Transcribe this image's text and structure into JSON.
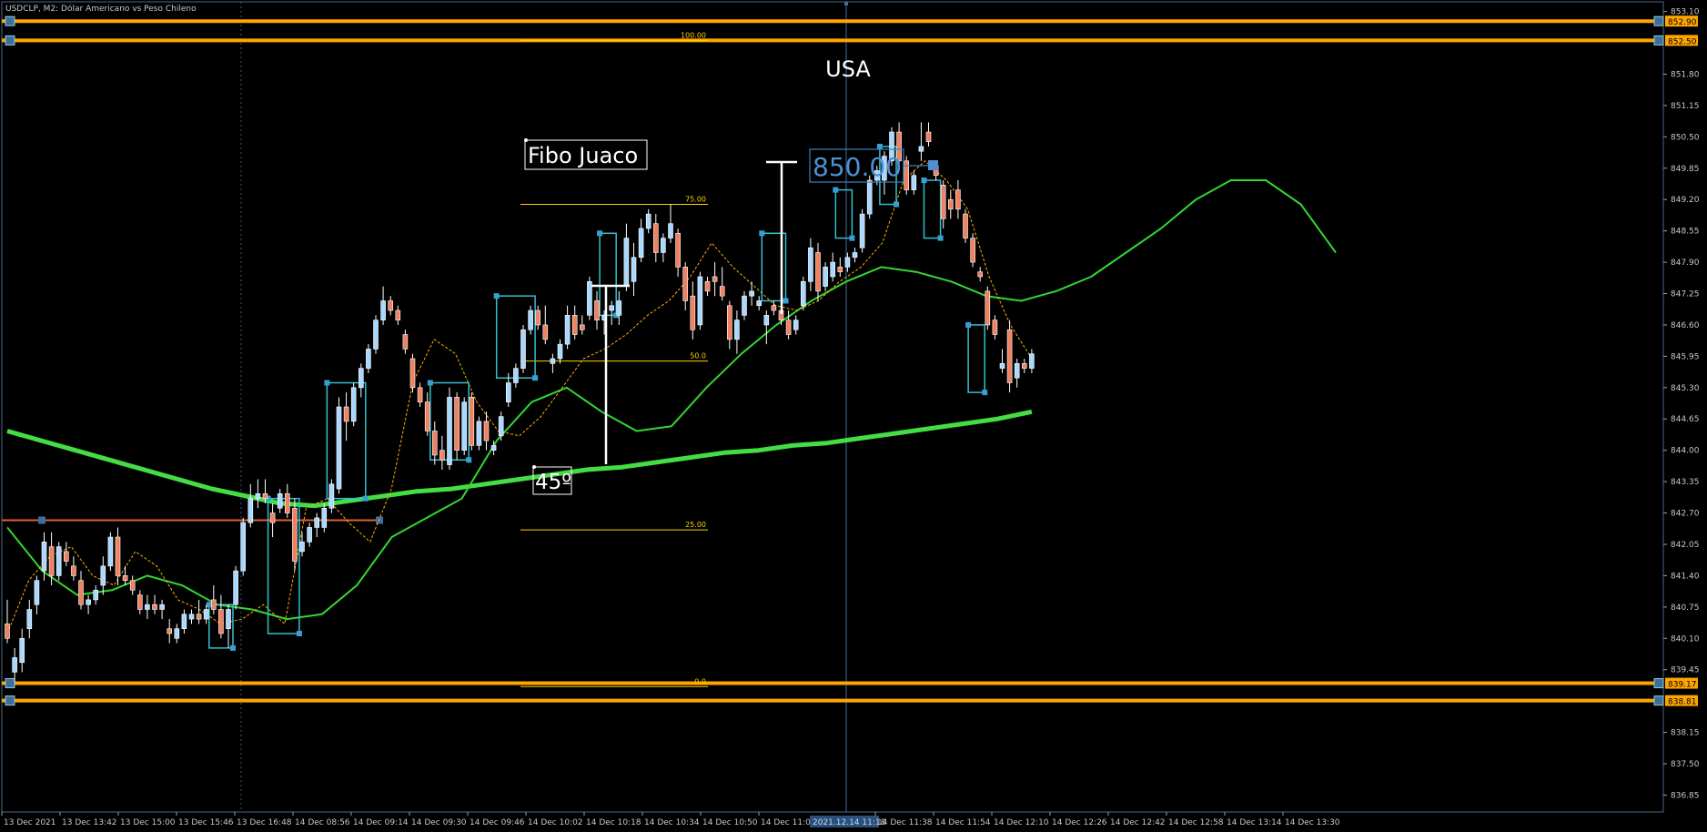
{
  "header": {
    "title": "USDCLP, M2:  Dólar Americano vs Peso Chileno"
  },
  "colors": {
    "background": "#000000",
    "frame": "#4a6a8a",
    "grid_dotted": "#3a5a80",
    "bull": "#a8d8ff",
    "bear": "#f08060",
    "candle_outline": "#ffffff",
    "ma_fast": "#ffb000",
    "ma_mid": "#33d633",
    "ma_slow": "#44dd44",
    "hline": "#ffa500",
    "fib": "#ffd000",
    "box": "#33c0d0",
    "axis_text": "#c8c8c8",
    "price_tag_bg": "#ffa500"
  },
  "chart_data": {
    "type": "candlestick",
    "symbol": "USDCLP",
    "timeframe": "M2",
    "ylim": [
      836.5,
      853.3
    ],
    "y_ticks": [
      836.85,
      837.5,
      838.15,
      839.45,
      840.1,
      840.75,
      841.4,
      842.05,
      842.7,
      843.35,
      844.0,
      844.65,
      845.3,
      845.95,
      846.6,
      847.25,
      847.9,
      848.55,
      849.2,
      849.85,
      850.5,
      851.15,
      851.8,
      853.1
    ],
    "x_labels": [
      "13 Dec 2021",
      "13 Dec 13:42",
      "13 Dec 15:00",
      "13 Dec 15:46",
      "13 Dec 16:48",
      "14 Dec 08:56",
      "14 Dec 09:14",
      "14 Dec 09:30",
      "14 Dec 09:46",
      "14 Dec 10:02",
      "14 Dec 10:18",
      "14 Dec 10:34",
      "14 Dec 10:50",
      "14 Dec 11:06",
      "14 Dec 11:38",
      "14 Dec 11:54",
      "14 Dec 12:10",
      "14 Dec 12:26",
      "14 Dec 12:42",
      "14 Dec 12:58",
      "14 Dec 13:14",
      "14 Dec 13:30"
    ],
    "crosshair_time": "2021.12.14 11:18",
    "candles": [
      {
        "o": 840.4,
        "h": 840.9,
        "l": 840.0,
        "c": 840.1
      },
      {
        "o": 839.4,
        "h": 839.9,
        "l": 839.2,
        "c": 839.7
      },
      {
        "o": 839.6,
        "h": 840.3,
        "l": 839.4,
        "c": 840.1
      },
      {
        "o": 840.3,
        "h": 840.9,
        "l": 840.1,
        "c": 840.7
      },
      {
        "o": 840.8,
        "h": 841.4,
        "l": 840.6,
        "c": 841.3
      },
      {
        "o": 841.5,
        "h": 842.3,
        "l": 841.3,
        "c": 842.1
      },
      {
        "o": 842.0,
        "h": 842.3,
        "l": 841.2,
        "c": 841.4
      },
      {
        "o": 841.4,
        "h": 842.1,
        "l": 841.3,
        "c": 842.0
      },
      {
        "o": 841.9,
        "h": 842.1,
        "l": 841.6,
        "c": 841.7
      },
      {
        "o": 841.6,
        "h": 841.8,
        "l": 841.3,
        "c": 841.4
      },
      {
        "o": 841.3,
        "h": 841.5,
        "l": 840.7,
        "c": 840.8
      },
      {
        "o": 840.8,
        "h": 841.0,
        "l": 840.6,
        "c": 840.9
      },
      {
        "o": 840.9,
        "h": 841.2,
        "l": 840.8,
        "c": 841.1
      },
      {
        "o": 841.2,
        "h": 841.8,
        "l": 841.0,
        "c": 841.6
      },
      {
        "o": 841.6,
        "h": 842.3,
        "l": 841.5,
        "c": 842.2
      },
      {
        "o": 842.2,
        "h": 842.4,
        "l": 841.2,
        "c": 841.4
      },
      {
        "o": 841.4,
        "h": 841.6,
        "l": 841.2,
        "c": 841.3
      },
      {
        "o": 841.3,
        "h": 841.4,
        "l": 841.0,
        "c": 841.1
      },
      {
        "o": 841.0,
        "h": 841.1,
        "l": 840.6,
        "c": 840.7
      },
      {
        "o": 840.7,
        "h": 841.0,
        "l": 840.5,
        "c": 840.8
      },
      {
        "o": 840.8,
        "h": 841.0,
        "l": 840.6,
        "c": 840.7
      },
      {
        "o": 840.7,
        "h": 840.9,
        "l": 840.5,
        "c": 840.8
      },
      {
        "o": 840.3,
        "h": 840.5,
        "l": 840.0,
        "c": 840.2
      },
      {
        "o": 840.1,
        "h": 840.4,
        "l": 840.0,
        "c": 840.3
      },
      {
        "o": 840.3,
        "h": 840.7,
        "l": 840.2,
        "c": 840.6
      },
      {
        "o": 840.5,
        "h": 840.7,
        "l": 840.4,
        "c": 840.6
      },
      {
        "o": 840.6,
        "h": 840.9,
        "l": 840.4,
        "c": 840.5
      },
      {
        "o": 840.5,
        "h": 840.8,
        "l": 840.4,
        "c": 840.7
      },
      {
        "o": 840.9,
        "h": 841.2,
        "l": 840.6,
        "c": 840.7
      },
      {
        "o": 840.7,
        "h": 841.0,
        "l": 840.1,
        "c": 840.2
      },
      {
        "o": 840.3,
        "h": 840.8,
        "l": 839.9,
        "c": 840.7
      },
      {
        "o": 840.8,
        "h": 841.6,
        "l": 840.7,
        "c": 841.5
      },
      {
        "o": 841.5,
        "h": 842.6,
        "l": 841.4,
        "c": 842.5
      },
      {
        "o": 842.5,
        "h": 843.3,
        "l": 842.4,
        "c": 843.0
      },
      {
        "o": 843.0,
        "h": 843.4,
        "l": 842.8,
        "c": 843.1
      },
      {
        "o": 843.1,
        "h": 843.4,
        "l": 842.9,
        "c": 843.0
      },
      {
        "o": 842.7,
        "h": 842.9,
        "l": 842.2,
        "c": 842.5
      },
      {
        "o": 842.8,
        "h": 843.2,
        "l": 842.7,
        "c": 843.1
      },
      {
        "o": 843.1,
        "h": 843.3,
        "l": 842.6,
        "c": 842.7
      },
      {
        "o": 842.8,
        "h": 843.0,
        "l": 841.5,
        "c": 841.7
      },
      {
        "o": 841.9,
        "h": 842.3,
        "l": 841.8,
        "c": 842.1
      },
      {
        "o": 842.1,
        "h": 842.5,
        "l": 842.0,
        "c": 842.4
      },
      {
        "o": 842.4,
        "h": 842.7,
        "l": 842.2,
        "c": 842.6
      },
      {
        "o": 842.4,
        "h": 842.9,
        "l": 842.3,
        "c": 842.8
      },
      {
        "o": 842.8,
        "h": 843.4,
        "l": 842.7,
        "c": 843.3
      },
      {
        "o": 843.2,
        "h": 845.1,
        "l": 843.1,
        "c": 844.9
      },
      {
        "o": 844.9,
        "h": 845.2,
        "l": 844.2,
        "c": 844.6
      },
      {
        "o": 844.6,
        "h": 845.4,
        "l": 844.5,
        "c": 845.3
      },
      {
        "o": 845.3,
        "h": 845.8,
        "l": 845.1,
        "c": 845.7
      },
      {
        "o": 845.7,
        "h": 846.2,
        "l": 845.6,
        "c": 846.1
      },
      {
        "o": 846.1,
        "h": 846.8,
        "l": 846.0,
        "c": 846.7
      },
      {
        "o": 846.7,
        "h": 847.4,
        "l": 846.6,
        "c": 847.1
      },
      {
        "o": 847.1,
        "h": 847.2,
        "l": 846.8,
        "c": 846.9
      },
      {
        "o": 846.9,
        "h": 847.0,
        "l": 846.6,
        "c": 846.7
      },
      {
        "o": 846.4,
        "h": 846.5,
        "l": 846.0,
        "c": 846.1
      },
      {
        "o": 845.9,
        "h": 846.0,
        "l": 845.2,
        "c": 845.3
      },
      {
        "o": 845.3,
        "h": 845.4,
        "l": 844.9,
        "c": 845.0
      },
      {
        "o": 845.0,
        "h": 845.2,
        "l": 844.3,
        "c": 844.4
      },
      {
        "o": 844.4,
        "h": 844.6,
        "l": 843.7,
        "c": 843.9
      },
      {
        "o": 844.0,
        "h": 844.3,
        "l": 843.6,
        "c": 843.8
      },
      {
        "o": 843.7,
        "h": 845.3,
        "l": 843.6,
        "c": 845.1
      },
      {
        "o": 845.1,
        "h": 845.2,
        "l": 843.8,
        "c": 844.0
      },
      {
        "o": 844.0,
        "h": 845.1,
        "l": 843.9,
        "c": 845.0
      },
      {
        "o": 845.1,
        "h": 845.2,
        "l": 844.0,
        "c": 844.1
      },
      {
        "o": 844.1,
        "h": 844.7,
        "l": 844.0,
        "c": 844.6
      },
      {
        "o": 844.6,
        "h": 844.8,
        "l": 844.0,
        "c": 844.2
      },
      {
        "o": 844.0,
        "h": 844.2,
        "l": 843.9,
        "c": 844.1
      },
      {
        "o": 844.3,
        "h": 844.8,
        "l": 844.2,
        "c": 844.7
      },
      {
        "o": 845.0,
        "h": 845.6,
        "l": 844.9,
        "c": 845.4
      },
      {
        "o": 845.4,
        "h": 845.8,
        "l": 845.3,
        "c": 845.7
      },
      {
        "o": 845.7,
        "h": 846.6,
        "l": 845.6,
        "c": 846.5
      },
      {
        "o": 846.5,
        "h": 847.0,
        "l": 846.4,
        "c": 846.9
      },
      {
        "o": 846.9,
        "h": 847.0,
        "l": 846.5,
        "c": 846.6
      },
      {
        "o": 846.6,
        "h": 847.0,
        "l": 846.2,
        "c": 846.3
      },
      {
        "o": 845.8,
        "h": 846.0,
        "l": 845.6,
        "c": 845.9
      },
      {
        "o": 845.9,
        "h": 846.3,
        "l": 845.8,
        "c": 846.2
      },
      {
        "o": 846.2,
        "h": 847.0,
        "l": 846.1,
        "c": 846.8
      },
      {
        "o": 846.8,
        "h": 847.0,
        "l": 846.3,
        "c": 846.4
      },
      {
        "o": 846.6,
        "h": 846.8,
        "l": 846.4,
        "c": 846.5
      },
      {
        "o": 846.8,
        "h": 847.6,
        "l": 846.7,
        "c": 847.5
      },
      {
        "o": 847.1,
        "h": 847.3,
        "l": 846.5,
        "c": 846.7
      },
      {
        "o": 846.7,
        "h": 846.9,
        "l": 846.4,
        "c": 846.8
      },
      {
        "o": 846.9,
        "h": 847.1,
        "l": 846.6,
        "c": 847.0
      },
      {
        "o": 846.8,
        "h": 847.3,
        "l": 846.6,
        "c": 847.1
      },
      {
        "o": 847.4,
        "h": 848.7,
        "l": 847.3,
        "c": 848.4
      },
      {
        "o": 847.5,
        "h": 848.3,
        "l": 847.2,
        "c": 848.0
      },
      {
        "o": 848.0,
        "h": 848.8,
        "l": 847.9,
        "c": 848.6
      },
      {
        "o": 848.6,
        "h": 849.0,
        "l": 848.5,
        "c": 848.9
      },
      {
        "o": 848.7,
        "h": 848.9,
        "l": 847.9,
        "c": 848.1
      },
      {
        "o": 848.1,
        "h": 848.5,
        "l": 847.9,
        "c": 848.4
      },
      {
        "o": 848.4,
        "h": 849.1,
        "l": 848.3,
        "c": 848.7
      },
      {
        "o": 848.5,
        "h": 848.6,
        "l": 847.6,
        "c": 847.8
      },
      {
        "o": 847.8,
        "h": 847.9,
        "l": 846.9,
        "c": 847.1
      },
      {
        "o": 847.2,
        "h": 847.5,
        "l": 846.3,
        "c": 846.5
      },
      {
        "o": 846.6,
        "h": 847.7,
        "l": 846.5,
        "c": 847.6
      },
      {
        "o": 847.5,
        "h": 847.6,
        "l": 847.2,
        "c": 847.3
      },
      {
        "o": 847.6,
        "h": 847.9,
        "l": 847.2,
        "c": 847.5
      },
      {
        "o": 847.4,
        "h": 847.8,
        "l": 847.1,
        "c": 847.2
      },
      {
        "o": 847.0,
        "h": 847.1,
        "l": 846.1,
        "c": 846.3
      },
      {
        "o": 846.3,
        "h": 846.9,
        "l": 846.0,
        "c": 846.7
      },
      {
        "o": 846.8,
        "h": 847.3,
        "l": 846.7,
        "c": 847.2
      },
      {
        "o": 847.2,
        "h": 847.5,
        "l": 847.0,
        "c": 847.3
      },
      {
        "o": 847.0,
        "h": 847.2,
        "l": 846.9,
        "c": 847.1
      },
      {
        "o": 846.6,
        "h": 846.9,
        "l": 846.2,
        "c": 846.8
      },
      {
        "o": 847.0,
        "h": 847.1,
        "l": 846.8,
        "c": 846.9
      },
      {
        "o": 846.9,
        "h": 847.2,
        "l": 846.6,
        "c": 846.7
      },
      {
        "o": 846.7,
        "h": 846.9,
        "l": 846.3,
        "c": 846.4
      },
      {
        "o": 846.5,
        "h": 846.8,
        "l": 846.4,
        "c": 846.7
      },
      {
        "o": 847.0,
        "h": 847.6,
        "l": 846.9,
        "c": 847.5
      },
      {
        "o": 847.5,
        "h": 848.4,
        "l": 847.3,
        "c": 848.2
      },
      {
        "o": 848.1,
        "h": 848.3,
        "l": 847.1,
        "c": 847.3
      },
      {
        "o": 847.4,
        "h": 847.9,
        "l": 847.3,
        "c": 847.8
      },
      {
        "o": 847.6,
        "h": 848.1,
        "l": 847.5,
        "c": 847.9
      },
      {
        "o": 847.8,
        "h": 848.0,
        "l": 847.6,
        "c": 847.7
      },
      {
        "o": 847.8,
        "h": 848.1,
        "l": 847.7,
        "c": 848.0
      },
      {
        "o": 848.0,
        "h": 848.2,
        "l": 847.9,
        "c": 848.1
      },
      {
        "o": 848.2,
        "h": 849.0,
        "l": 848.1,
        "c": 848.9
      },
      {
        "o": 848.9,
        "h": 849.7,
        "l": 848.8,
        "c": 849.6
      },
      {
        "o": 849.6,
        "h": 849.9,
        "l": 849.5,
        "c": 849.8
      },
      {
        "o": 849.6,
        "h": 850.2,
        "l": 849.3,
        "c": 850.1
      },
      {
        "o": 850.0,
        "h": 850.7,
        "l": 849.9,
        "c": 850.6
      },
      {
        "o": 850.6,
        "h": 850.8,
        "l": 849.9,
        "c": 850.0
      },
      {
        "o": 850.0,
        "h": 850.1,
        "l": 849.3,
        "c": 849.4
      },
      {
        "o": 849.4,
        "h": 849.8,
        "l": 849.3,
        "c": 849.7
      },
      {
        "o": 850.2,
        "h": 850.8,
        "l": 850.0,
        "c": 850.3
      },
      {
        "o": 850.6,
        "h": 850.8,
        "l": 850.3,
        "c": 850.4
      },
      {
        "o": 849.9,
        "h": 850.0,
        "l": 849.6,
        "c": 849.7
      },
      {
        "o": 849.5,
        "h": 849.6,
        "l": 848.6,
        "c": 848.8
      },
      {
        "o": 849.2,
        "h": 849.4,
        "l": 848.8,
        "c": 849.0
      },
      {
        "o": 849.4,
        "h": 849.6,
        "l": 848.8,
        "c": 849.0
      },
      {
        "o": 848.9,
        "h": 849.0,
        "l": 848.3,
        "c": 848.4
      },
      {
        "o": 848.4,
        "h": 848.5,
        "l": 847.8,
        "c": 847.9
      },
      {
        "o": 847.7,
        "h": 847.8,
        "l": 847.5,
        "c": 847.6
      },
      {
        "o": 847.3,
        "h": 847.4,
        "l": 846.5,
        "c": 846.6
      },
      {
        "o": 846.7,
        "h": 846.8,
        "l": 846.3,
        "c": 846.4
      },
      {
        "o": 845.7,
        "h": 846.1,
        "l": 845.6,
        "c": 845.8
      },
      {
        "o": 846.5,
        "h": 846.7,
        "l": 845.2,
        "c": 845.4
      },
      {
        "o": 845.5,
        "h": 845.9,
        "l": 845.3,
        "c": 845.8
      },
      {
        "o": 845.8,
        "h": 845.9,
        "l": 845.6,
        "c": 845.7
      },
      {
        "o": 845.7,
        "h": 846.1,
        "l": 845.6,
        "c": 846.0
      }
    ],
    "ma_slow": [
      844.4,
      844.2,
      844.0,
      843.8,
      843.6,
      843.4,
      843.2,
      843.05,
      842.9,
      842.85,
      842.95,
      843.05,
      843.15,
      843.2,
      843.3,
      843.4,
      843.5,
      843.6,
      843.65,
      843.75,
      843.85,
      843.95,
      844.0,
      844.1,
      844.15,
      844.25,
      844.35,
      844.45,
      844.55,
      844.65,
      844.8
    ],
    "ma_mid": [
      842.4,
      841.5,
      841.0,
      841.1,
      841.4,
      841.2,
      840.8,
      840.7,
      840.5,
      840.6,
      841.2,
      842.2,
      842.6,
      843.0,
      844.2,
      845.0,
      845.3,
      844.8,
      844.4,
      844.5,
      845.3,
      846.0,
      846.6,
      847.1,
      847.5,
      847.8,
      847.7,
      847.5,
      847.2,
      847.1,
      847.3,
      847.6,
      848.1,
      848.6,
      849.2,
      849.6,
      849.6,
      849.1,
      848.1
    ],
    "ma_fast": [
      840.2,
      841.3,
      841.8,
      842.0,
      841.4,
      841.2,
      841.9,
      841.6,
      840.9,
      840.7,
      840.4,
      840.5,
      840.8,
      840.4,
      842.8,
      843.0,
      842.5,
      842.1,
      843.2,
      845.4,
      846.3,
      846.0,
      845.0,
      844.4,
      844.3,
      844.7,
      845.3,
      845.9,
      846.1,
      846.4,
      846.8,
      847.1,
      847.6,
      848.3,
      847.8,
      847.4,
      847.0,
      846.9,
      847.1,
      847.5,
      847.8,
      848.3,
      849.6,
      850.0,
      849.6,
      849.0,
      847.6,
      846.6,
      845.9
    ],
    "horizontal_lines": [
      {
        "price": 852.9,
        "label": "852.90"
      },
      {
        "price": 852.5,
        "label": "852.50"
      },
      {
        "price": 839.17,
        "label": "839.17"
      },
      {
        "price": 838.81,
        "label": "838.81"
      }
    ],
    "red_line_price": 842.55,
    "fibonacci": {
      "name": "Fibo Juaco",
      "levels": [
        {
          "ratio": "100.00",
          "price": 852.5
        },
        {
          "ratio": "75.00",
          "price": 849.1
        },
        {
          "ratio": "50.0",
          "price": 845.85
        },
        {
          "ratio": "25.00",
          "price": 842.35
        },
        {
          "ratio": "0.0",
          "price": 839.1
        }
      ]
    },
    "annotations": {
      "usa_label": "USA",
      "price_label": "850.00",
      "angle_label": "45º",
      "fibo_label": "Fibo Juaco"
    },
    "boxes": [
      {
        "from": 44,
        "to": 48,
        "top": 845.4,
        "bottom": 843.0
      },
      {
        "from": 36,
        "to": 39,
        "top": 843.0,
        "bottom": 840.2
      },
      {
        "from": 28,
        "to": 30,
        "top": 840.8,
        "bottom": 839.9
      },
      {
        "from": 58,
        "to": 62,
        "top": 845.4,
        "bottom": 843.8
      },
      {
        "from": 67,
        "to": 71,
        "top": 847.2,
        "bottom": 845.5
      },
      {
        "from": 81,
        "to": 82,
        "top": 848.5,
        "bottom": 846.8
      },
      {
        "from": 103,
        "to": 105,
        "top": 848.5,
        "bottom": 847.1
      },
      {
        "from": 113,
        "to": 114,
        "top": 849.4,
        "bottom": 848.4
      },
      {
        "from": 119,
        "to": 120,
        "top": 850.3,
        "bottom": 849.1
      },
      {
        "from": 125,
        "to": 126,
        "top": 849.6,
        "bottom": 848.4
      },
      {
        "from": 131,
        "to": 132,
        "top": 846.6,
        "bottom": 845.2
      }
    ]
  }
}
